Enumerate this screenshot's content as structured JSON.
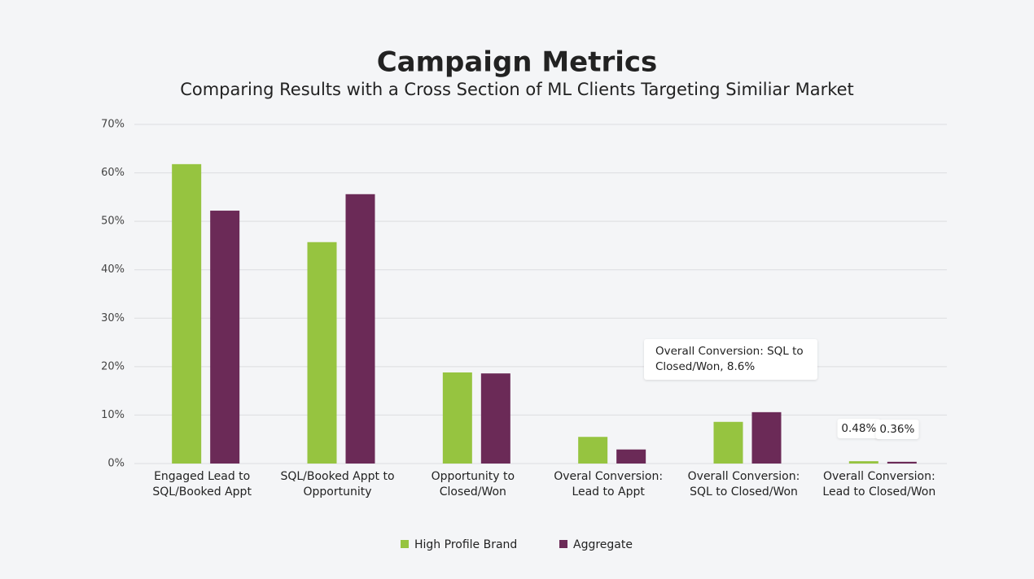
{
  "chart_data": {
    "type": "bar",
    "title": "Campaign Metrics",
    "subtitle": "Comparing Results with a Cross Section of ML Clients Targeting Similiar Market",
    "categories": [
      "Engaged Lead to SQL/Booked Appt",
      "SQL/Booked Appt to Opportunity",
      "Opportunity to Closed/Won",
      "Overal Conversion: Lead to Appt",
      "Overall Conversion: SQL to Closed/Won",
      "Overall Conversion: Lead to Closed/Won"
    ],
    "series": [
      {
        "name": "High Profile Brand",
        "color": "#96c440",
        "values": [
          61.8,
          45.7,
          18.8,
          5.5,
          8.6,
          0.48
        ],
        "value_labels": [
          null,
          null,
          null,
          null,
          null,
          "0.48%"
        ]
      },
      {
        "name": "Aggregate",
        "color": "#6b2a57",
        "values": [
          52.2,
          55.6,
          18.6,
          2.9,
          10.6,
          0.36
        ],
        "value_labels": [
          null,
          null,
          null,
          null,
          null,
          "0.36%"
        ]
      }
    ],
    "annotation": "Overall Conversion: SQL to Closed/Won, 8.6%",
    "ylim": [
      0,
      70
    ],
    "yticks": [
      {
        "value": 0,
        "label": "0%"
      },
      {
        "value": 10,
        "label": "10%"
      },
      {
        "value": 20,
        "label": "20%"
      },
      {
        "value": 30,
        "label": "30%"
      },
      {
        "value": 40,
        "label": "40%"
      },
      {
        "value": 50,
        "label": "50%"
      },
      {
        "value": 60,
        "label": "60%"
      },
      {
        "value": 70,
        "label": "70%"
      }
    ],
    "grid": true
  }
}
